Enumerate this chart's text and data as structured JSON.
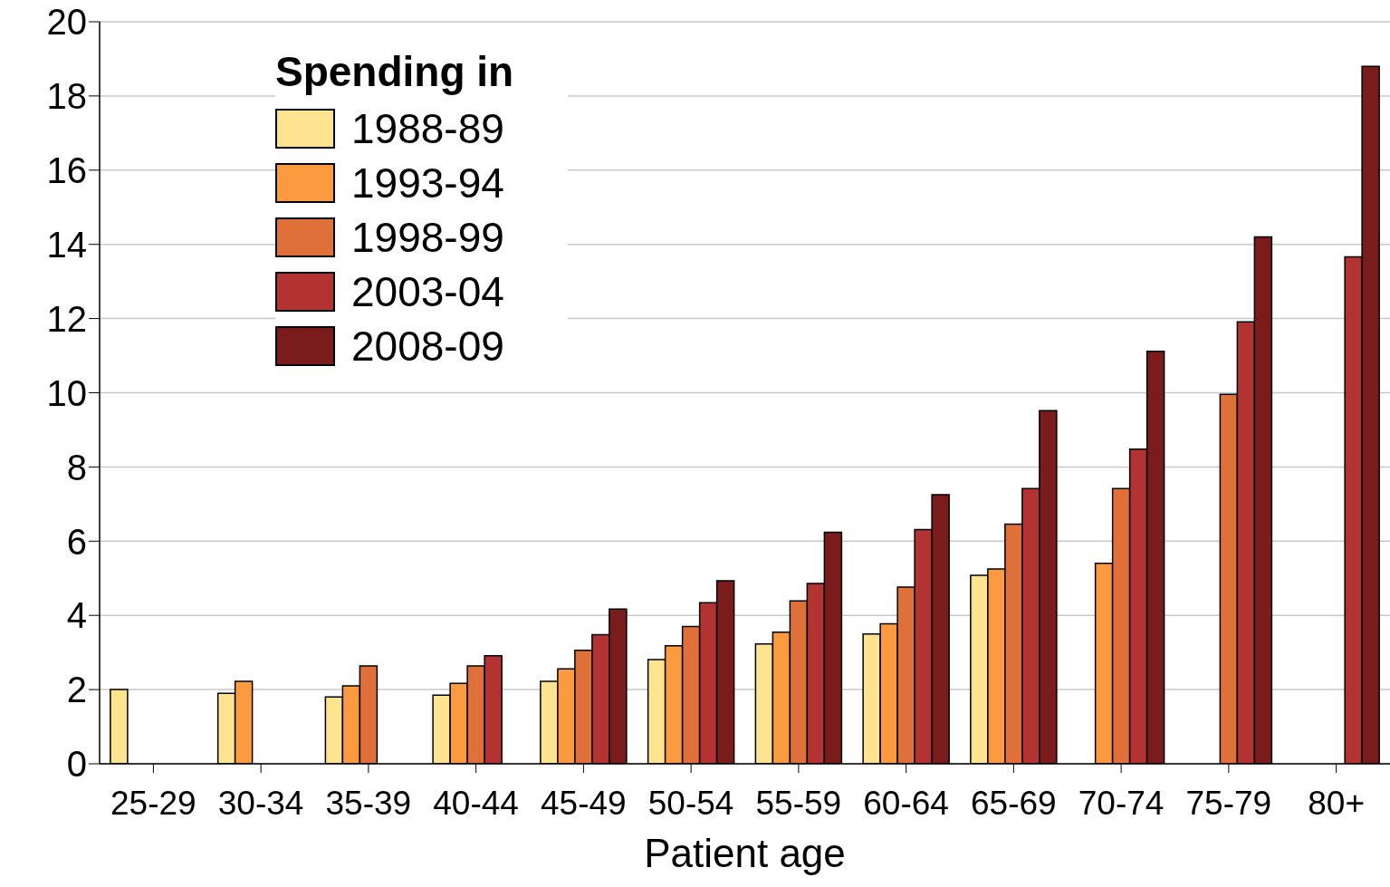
{
  "chart_data": {
    "type": "bar",
    "xlabel": "Patient age",
    "legend_title": "Spending in",
    "categories": [
      "25-29",
      "30-34",
      "35-39",
      "40-44",
      "45-49",
      "50-54",
      "55-59",
      "60-64",
      "65-69",
      "70-74",
      "75-79",
      "80+"
    ],
    "series": [
      {
        "name": "1988-89",
        "color": "#fee391",
        "values": [
          2.0,
          1.9,
          1.8,
          1.85,
          2.22,
          2.81,
          3.23,
          3.5,
          5.08,
          null,
          null,
          null
        ]
      },
      {
        "name": "1993-94",
        "color": "#fb9a3f",
        "values": [
          null,
          2.22,
          2.1,
          2.17,
          2.56,
          3.18,
          3.55,
          3.77,
          5.25,
          5.4,
          null,
          null
        ]
      },
      {
        "name": "1998-99",
        "color": "#e0703a",
        "values": [
          null,
          null,
          2.64,
          2.64,
          3.06,
          3.7,
          4.39,
          4.76,
          6.46,
          7.42,
          9.96,
          null
        ]
      },
      {
        "name": "2003-04",
        "color": "#b33232",
        "values": [
          null,
          null,
          null,
          2.91,
          3.48,
          4.34,
          4.86,
          6.31,
          7.42,
          8.48,
          11.91,
          13.66
        ]
      },
      {
        "name": "2008-09",
        "color": "#7b1c1c",
        "values": [
          null,
          null,
          null,
          null,
          4.17,
          4.93,
          6.24,
          7.25,
          9.52,
          11.12,
          14.2,
          18.8
        ]
      }
    ],
    "ylim": [
      0,
      20
    ],
    "yticks": [
      0,
      2,
      4,
      6,
      8,
      10,
      12,
      14,
      16,
      18,
      20
    ],
    "grid": "y",
    "legend": "top left"
  }
}
